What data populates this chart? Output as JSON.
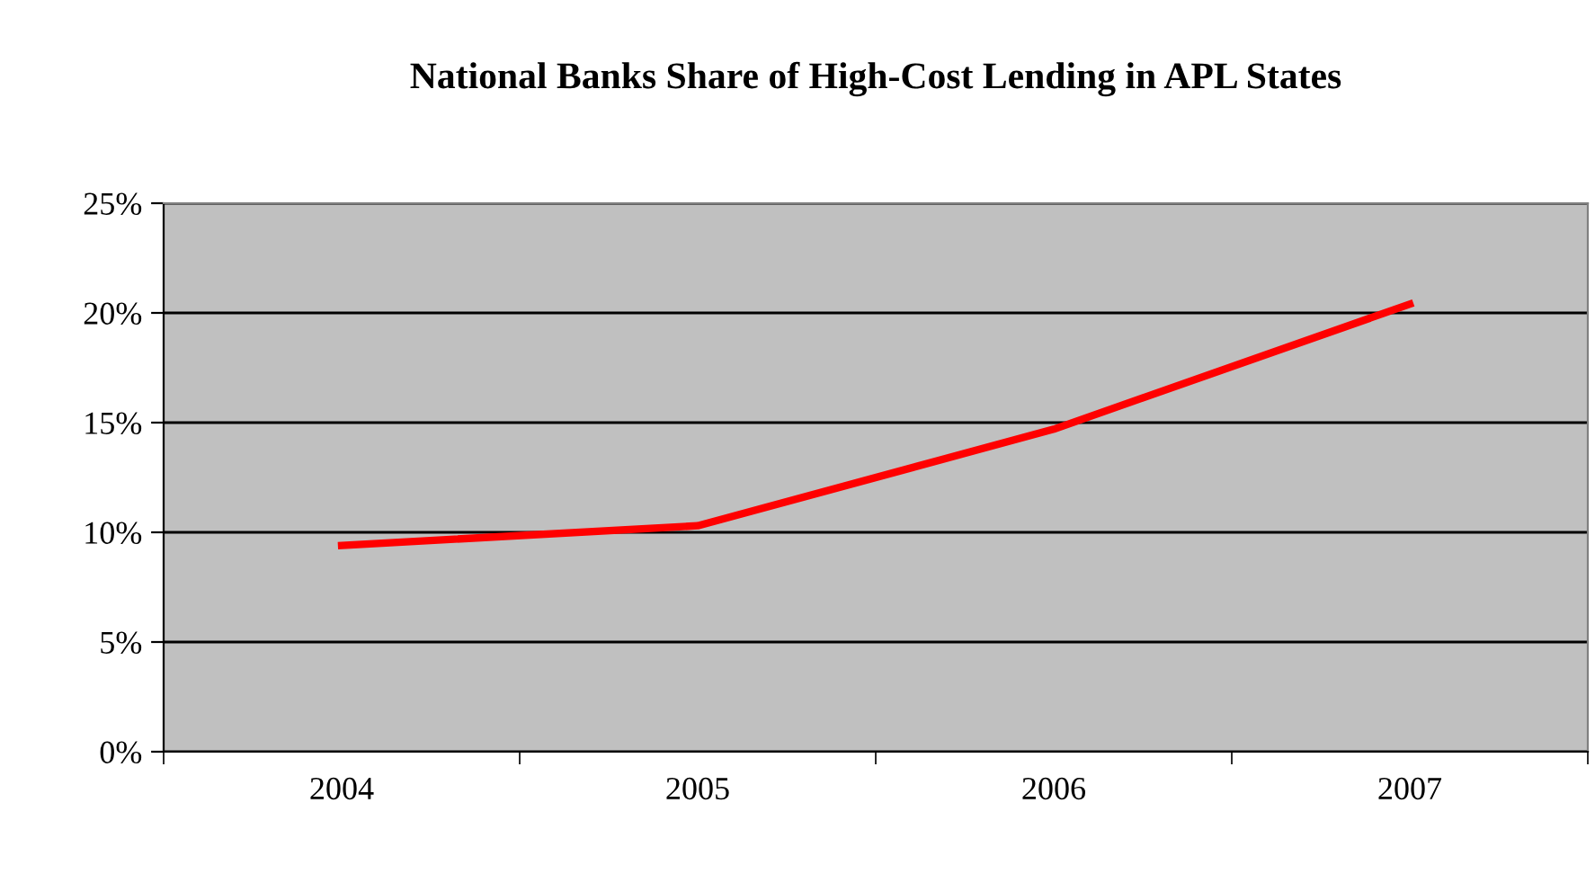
{
  "chart_data": {
    "type": "line",
    "title": "National Banks Share of High-Cost Lending in APL States",
    "categories": [
      "2004",
      "2005",
      "2006",
      "2007"
    ],
    "series": [
      {
        "color": "#ff0000",
        "values": [
          9.4,
          10.3,
          14.7,
          20.4
        ]
      }
    ],
    "ylim": [
      0,
      25
    ],
    "yticks": [
      {
        "value": 0,
        "label": "0%"
      },
      {
        "value": 5,
        "label": "5%"
      },
      {
        "value": 10,
        "label": "10%"
      },
      {
        "value": 15,
        "label": "15%"
      },
      {
        "value": 20,
        "label": "20%"
      },
      {
        "value": 25,
        "label": "25%"
      }
    ],
    "grid": "y",
    "legend": false,
    "marker": "none",
    "line_style": "solid"
  }
}
